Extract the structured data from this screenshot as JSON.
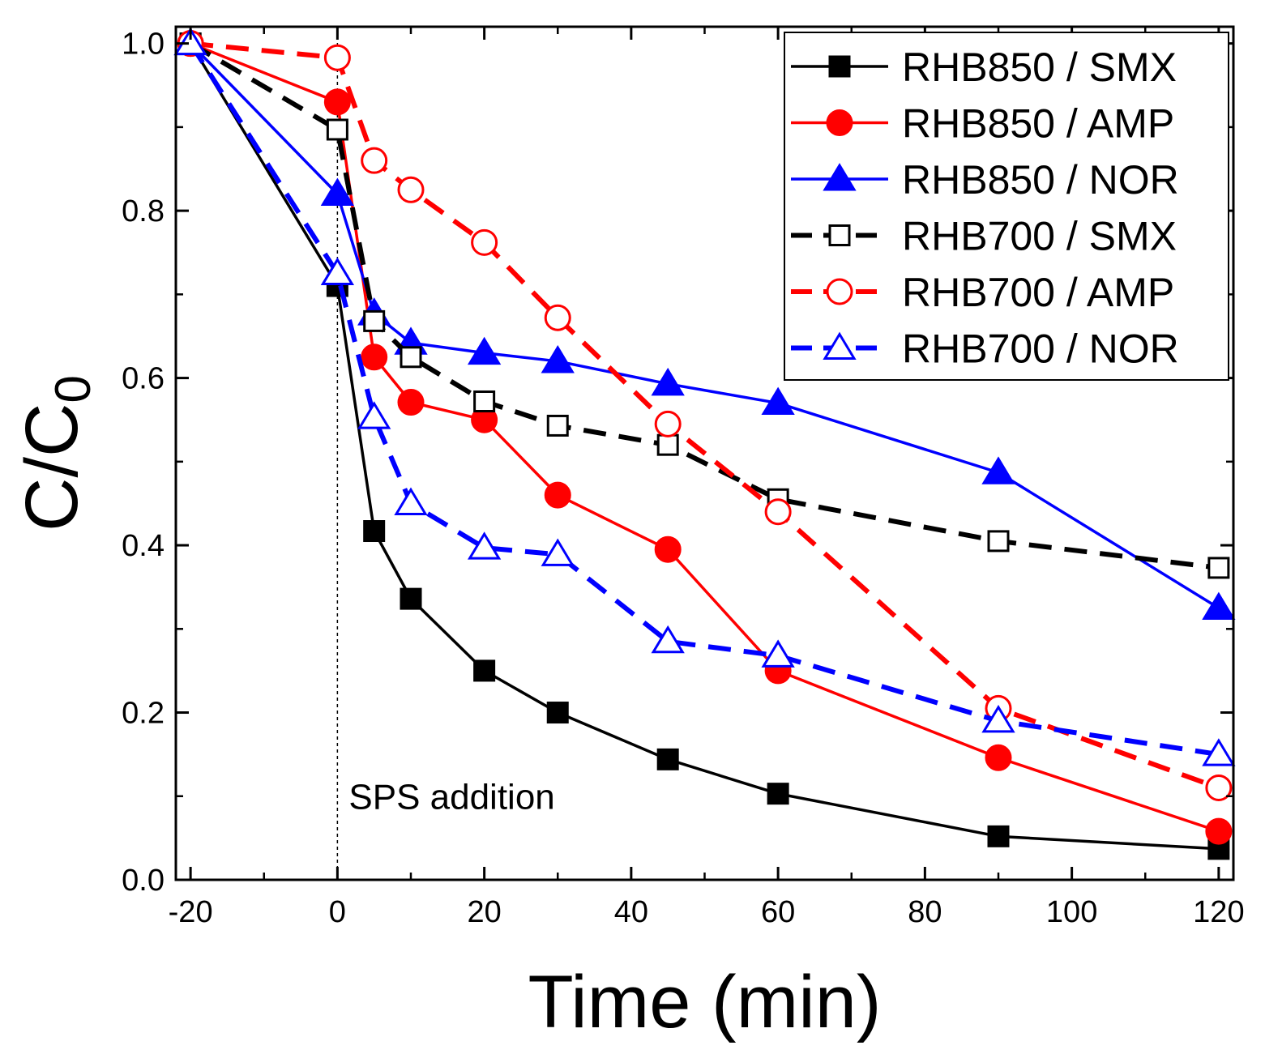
{
  "chart_data": {
    "type": "line",
    "title": "",
    "xlabel": "Time (min)",
    "ylabel_main": "C/C",
    "ylabel_sub": "0",
    "xlim": [
      -22,
      122
    ],
    "ylim": [
      0.0,
      1.02
    ],
    "x_ticks": [
      -20,
      0,
      20,
      40,
      60,
      80,
      100,
      120
    ],
    "x_tick_labels": [
      "-20",
      "0",
      "20",
      "40",
      "60",
      "80",
      "100",
      "120"
    ],
    "y_ticks": [
      0.0,
      0.2,
      0.4,
      0.6,
      0.8,
      1.0
    ],
    "y_tick_labels": [
      "0.0",
      "0.2",
      "0.4",
      "0.6",
      "0.8",
      "1.0"
    ],
    "annotation": {
      "text": "SPS addition",
      "x": 0
    },
    "legend_position": "top-right",
    "x": [
      -20,
      0,
      5,
      10,
      20,
      30,
      45,
      60,
      90,
      120
    ],
    "series": [
      {
        "name": "RHB850 / SMX",
        "color": "#000000",
        "marker": "square",
        "filled": true,
        "dashed": false,
        "values": [
          1.0,
          0.71,
          0.417,
          0.336,
          0.25,
          0.2,
          0.144,
          0.103,
          0.052,
          0.037
        ]
      },
      {
        "name": "RHB850 / AMP",
        "color": "#ff0000",
        "marker": "circle",
        "filled": true,
        "dashed": false,
        "values": [
          1.0,
          0.93,
          0.625,
          0.571,
          0.55,
          0.46,
          0.395,
          0.25,
          0.146,
          0.058
        ]
      },
      {
        "name": "RHB850 / NOR",
        "color": "#0000ff",
        "marker": "triangle",
        "filled": true,
        "dashed": false,
        "values": [
          1.0,
          0.82,
          0.677,
          0.642,
          0.63,
          0.62,
          0.593,
          0.57,
          0.487,
          0.325
        ]
      },
      {
        "name": "RHB700 / SMX",
        "color": "#000000",
        "marker": "square",
        "filled": false,
        "dashed": true,
        "values": [
          1.0,
          0.897,
          0.668,
          0.625,
          0.572,
          0.543,
          0.52,
          0.455,
          0.405,
          0.373
        ]
      },
      {
        "name": "RHB700 / AMP",
        "color": "#ff0000",
        "marker": "circle",
        "filled": false,
        "dashed": true,
        "values": [
          1.0,
          0.983,
          0.86,
          0.825,
          0.762,
          0.672,
          0.545,
          0.44,
          0.205,
          0.11
        ]
      },
      {
        "name": "RHB700 / NOR",
        "color": "#0000ff",
        "marker": "triangle",
        "filled": false,
        "dashed": true,
        "values": [
          1.0,
          0.725,
          0.553,
          0.45,
          0.397,
          0.389,
          0.285,
          0.268,
          0.19,
          0.15
        ]
      }
    ]
  }
}
